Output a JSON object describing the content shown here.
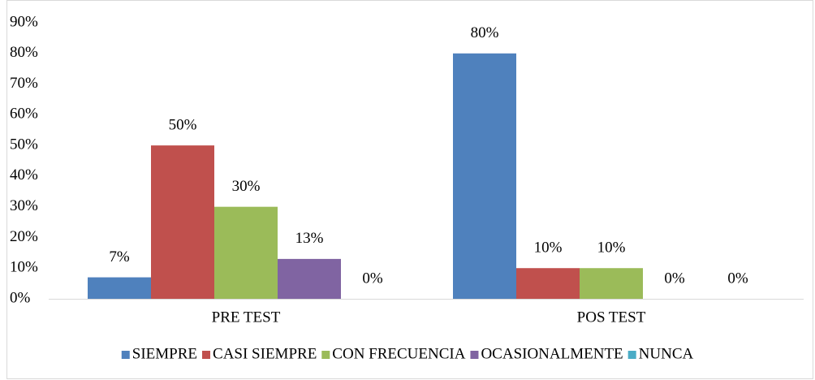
{
  "chart_data": {
    "type": "bar",
    "categories": [
      "PRE TEST",
      "POS TEST"
    ],
    "series": [
      {
        "name": "SIEMPRE",
        "color": "#4f81bd",
        "values": [
          7,
          80
        ],
        "value_labels": [
          "7%",
          "80%"
        ]
      },
      {
        "name": "CASI SIEMPRE",
        "color": "#c0504d",
        "values": [
          50,
          10
        ],
        "value_labels": [
          "50%",
          "10%"
        ]
      },
      {
        "name": "CON FRECUENCIA",
        "color": "#9bbb59",
        "values": [
          30,
          10
        ],
        "value_labels": [
          "30%",
          "10%"
        ]
      },
      {
        "name": "OCASIONALMENTE",
        "color": "#8064a2",
        "values": [
          13,
          0
        ],
        "value_labels": [
          "13%",
          "0%"
        ]
      },
      {
        "name": "NUNCA",
        "color": "#4bacc6",
        "values": [
          0,
          0
        ],
        "value_labels": [
          "0%",
          "0%"
        ]
      }
    ],
    "ylim": [
      0,
      90
    ],
    "yticks": [
      {
        "value": 0,
        "label": "0%"
      },
      {
        "value": 10,
        "label": "10%"
      },
      {
        "value": 20,
        "label": "20%"
      },
      {
        "value": 30,
        "label": "30%"
      },
      {
        "value": 40,
        "label": "40%"
      },
      {
        "value": 50,
        "label": "50%"
      },
      {
        "value": 60,
        "label": "60%"
      },
      {
        "value": 70,
        "label": "70%"
      },
      {
        "value": 80,
        "label": "80%"
      },
      {
        "value": 90,
        "label": "90%"
      }
    ],
    "legend": "bottom"
  }
}
